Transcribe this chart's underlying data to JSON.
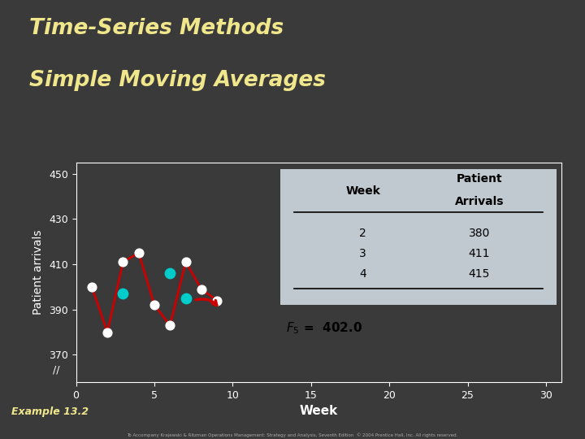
{
  "title_line1": "Time-Series Methods",
  "title_line2": "Simple Moving Averages",
  "title_color": "#f0e68c",
  "background_color": "#3a3a3a",
  "plot_bg_color": "#3a3a3a",
  "xlabel": "Week",
  "ylabel": "Patient arrivals",
  "axis_label_color": "#ffffff",
  "tick_color": "#ffffff",
  "xlim": [
    0,
    31
  ],
  "ylim": [
    358,
    455
  ],
  "xticks": [
    0,
    5,
    10,
    15,
    20,
    25,
    30
  ],
  "yticks": [
    370,
    390,
    410,
    430,
    450
  ],
  "actual_weeks": [
    1,
    2,
    3,
    4,
    5,
    6,
    7,
    8,
    9
  ],
  "actual_values": [
    400,
    380,
    411,
    415,
    392,
    383,
    411,
    399,
    394
  ],
  "ma_weeks": [
    3,
    6,
    7
  ],
  "ma_values": [
    397,
    406,
    395
  ],
  "line_color": "#cc0000",
  "dot_color": "#ffffff",
  "ma_dot_color": "#00cccc",
  "dot_size": 60,
  "ma_dot_size": 80,
  "table_bg": "#c0c8d0",
  "table_weeks": [
    2,
    3,
    4
  ],
  "table_arrivals": [
    380,
    411,
    415
  ],
  "f5_text": "$F_5$ =  402.0",
  "example_text": "Example 13.2",
  "example_color": "#f0e68c",
  "copyright": "To Accompany Krajewski & Ritzman Operations Management: Strategy and Analysis, Seventh Edition  © 2004 Prentice Hall, Inc. All rights reserved."
}
